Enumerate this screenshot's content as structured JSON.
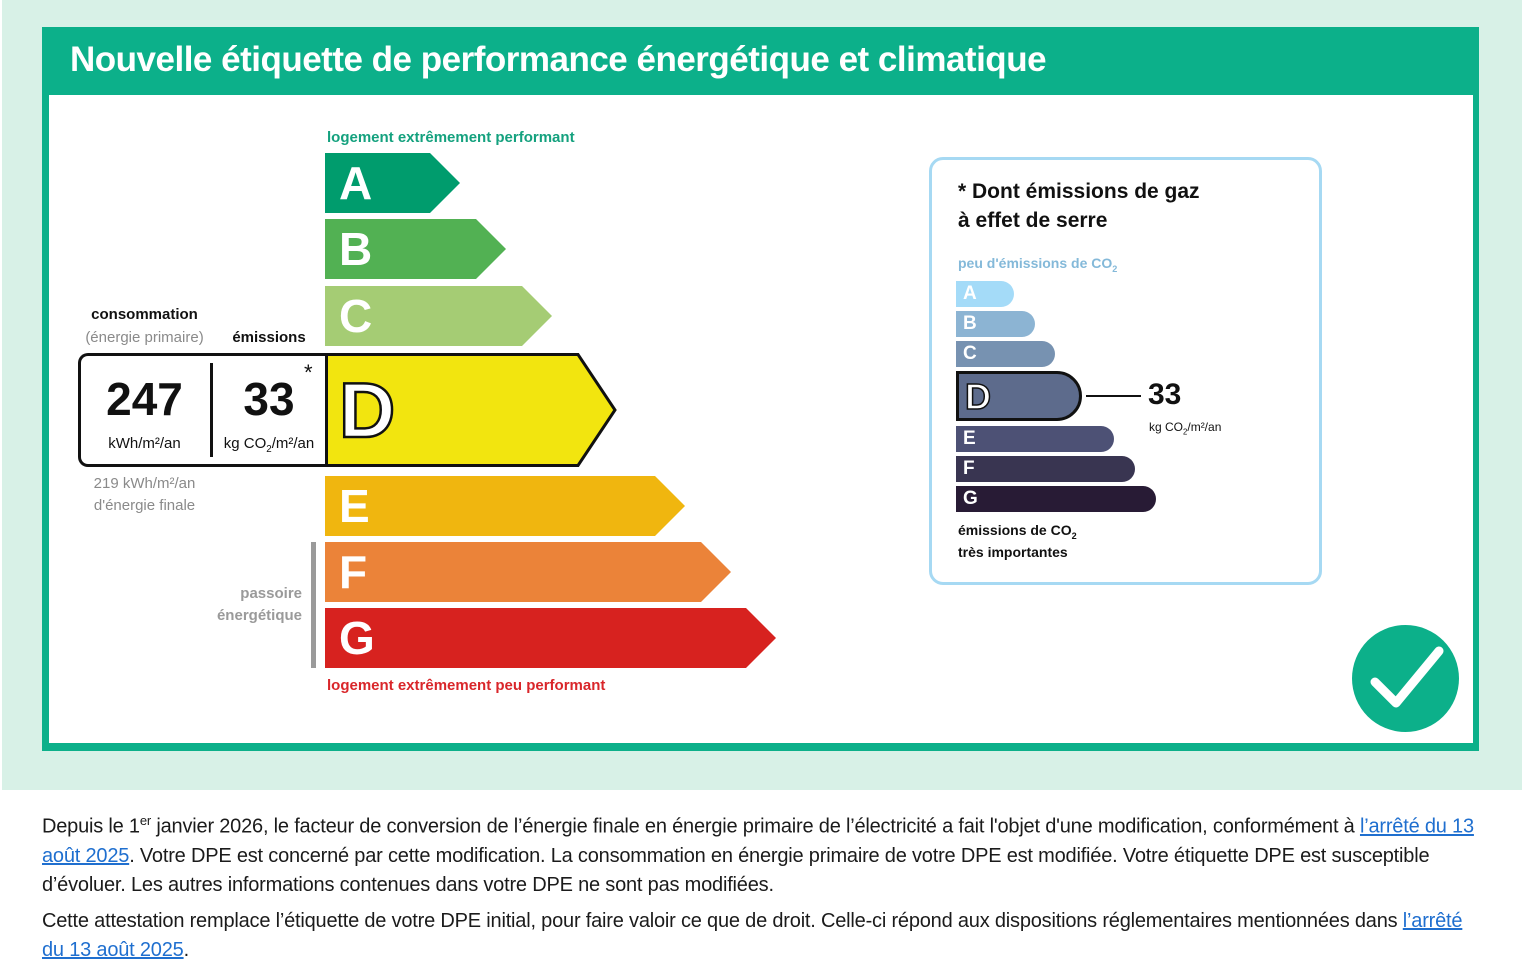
{
  "title": "Nouvelle étiquette de performance énergétique et climatique",
  "energy_label": {
    "top_caption": "logement extrêmement performant",
    "bottom_caption": "logement extrêmement peu performant",
    "classes": [
      {
        "letter": "A",
        "color": "#009c6d"
      },
      {
        "letter": "B",
        "color": "#52b153"
      },
      {
        "letter": "C",
        "color": "#a5cc74"
      },
      {
        "letter": "D",
        "color": "#f2e50f"
      },
      {
        "letter": "E",
        "color": "#f0b60f"
      },
      {
        "letter": "F",
        "color": "#eb8339"
      },
      {
        "letter": "G",
        "color": "#d7221f"
      }
    ],
    "selected_class": "D",
    "consumption_label": "consommation",
    "consumption_sublabel": "(énergie primaire)",
    "consumption_value": "247",
    "consumption_unit": "kWh/m²/an",
    "emissions_label": "émissions",
    "emissions_value": "33",
    "emissions_unit_prefix": "kg CO",
    "emissions_unit_sub": "2",
    "emissions_unit_suffix": "/m²/an",
    "asterisk": "*",
    "final_energy_line1": "219 kWh/m²/an",
    "final_energy_line2": "d'énergie finale",
    "sieve_line1": "passoire",
    "sieve_line2": "énergétique"
  },
  "ghg_label": {
    "title_line1": "* Dont émissions de gaz",
    "title_line2": "à effet de serre",
    "top_caption_prefix": "peu d'émissions de CO",
    "top_caption_sub": "2",
    "bottom_caption_line1_prefix": "émissions de CO",
    "bottom_caption_line1_sub": "2",
    "bottom_caption_line2": "très importantes",
    "classes": [
      {
        "letter": "A",
        "color": "#a4dbf8"
      },
      {
        "letter": "B",
        "color": "#8cb4d3"
      },
      {
        "letter": "C",
        "color": "#7792b1"
      },
      {
        "letter": "D",
        "color": "#5d6b8c"
      },
      {
        "letter": "E",
        "color": "#4d5175"
      },
      {
        "letter": "F",
        "color": "#393551"
      },
      {
        "letter": "G",
        "color": "#281b35"
      }
    ],
    "selected_class": "D",
    "value": "33",
    "unit_prefix": "kg CO",
    "unit_sub": "2",
    "unit_suffix": "/m²/an"
  },
  "notice": {
    "p1_part1": "Depuis le 1",
    "p1_sup": "er",
    "p1_part2": " janvier 2026, le facteur de conversion de l’énergie finale en énergie primaire de l’électricité a fait l'objet d'une modification, conformément à ",
    "p1_link": "l’arrêté du 13 août 2025",
    "p1_part3": ". Votre DPE est concerné par cette modification. La consommation en énergie primaire de votre DPE est modifiée. Votre étiquette DPE est susceptible d’évoluer. Les autres informations contenues dans votre DPE ne sont pas modifiées.",
    "p2_part1": "Cette attestation remplace l’étiquette de votre DPE initial, pour faire valoir ce que de droit. Celle-ci répond aux dispositions réglementaires mentionnées dans ",
    "p2_link": "l’arrêté du 13 août 2025",
    "p2_part2": "."
  },
  "icons": {
    "check": "checkmark-icon"
  }
}
